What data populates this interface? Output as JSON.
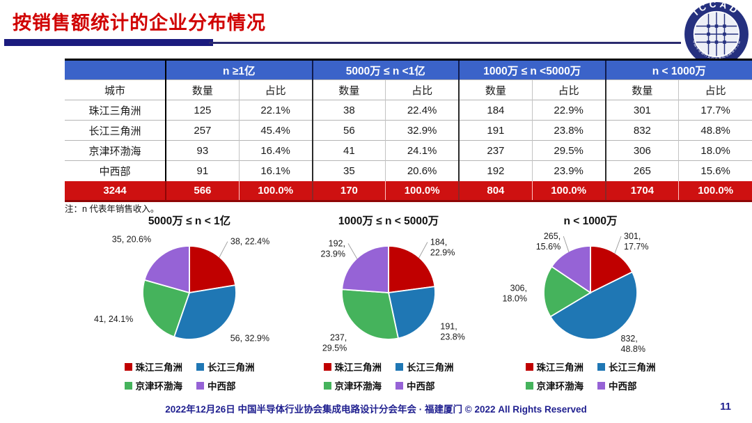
{
  "slide": {
    "title": "按销售额统计的企业分布情况",
    "note": "注：n 代表年销售收入。",
    "footer": "2022年12月26日 中国半导体行业协会集成电路设计分会年会 · 福建厦门 © 2022 All Rights Reserved",
    "page_number": "11",
    "logo_text": "ICCAD",
    "logo_ring_text": "中国半导体行业协会集成电路设计分会"
  },
  "colors": {
    "title_red": "#D00000",
    "divider_navy": "#1B1B7E",
    "header_blue": "#3B63C9",
    "total_row_red": "#CE1111",
    "footer_navy": "#1F1F8F",
    "pie_red": "#C00000",
    "pie_blue": "#1F77B4",
    "pie_green": "#45B35C",
    "pie_purple": "#9663D6"
  },
  "table": {
    "city_header": "城市",
    "group_headers": [
      "n ≥1亿",
      "5000万 ≤ n <1亿",
      "1000万 ≤ n <5000万",
      "n < 1000万"
    ],
    "sub_headers": [
      "数量",
      "占比"
    ],
    "rows": [
      {
        "city": "珠江三角洲",
        "cells": [
          "125",
          "22.1%",
          "38",
          "22.4%",
          "184",
          "22.9%",
          "301",
          "17.7%"
        ]
      },
      {
        "city": "长江三角洲",
        "cells": [
          "257",
          "45.4%",
          "56",
          "32.9%",
          "191",
          "23.8%",
          "832",
          "48.8%"
        ]
      },
      {
        "city": "京津环渤海",
        "cells": [
          "93",
          "16.4%",
          "41",
          "24.1%",
          "237",
          "29.5%",
          "306",
          "18.0%"
        ]
      },
      {
        "city": "中西部",
        "cells": [
          "91",
          "16.1%",
          "35",
          "20.6%",
          "192",
          "23.9%",
          "265",
          "15.6%"
        ]
      }
    ],
    "total_row": {
      "city": "3244",
      "cells": [
        "566",
        "100.0%",
        "170",
        "100.0%",
        "804",
        "100.0%",
        "1704",
        "100.0%"
      ]
    }
  },
  "legend": {
    "items": [
      {
        "label": "珠江三角洲",
        "color": "#C00000"
      },
      {
        "label": "长江三角洲",
        "color": "#1F77B4"
      },
      {
        "label": "京津环渤海",
        "color": "#45B35C"
      },
      {
        "label": "中西部",
        "color": "#9663D6"
      }
    ]
  },
  "chart_data": [
    {
      "type": "pie",
      "title": "5000万 ≤ n < 1亿",
      "legend_position": "bottom",
      "slices": [
        {
          "name": "珠江三角洲",
          "value": 38,
          "pct": 22.4,
          "label_lines": [
            "38, 22.4%"
          ],
          "leader": true,
          "color": "#C00000"
        },
        {
          "name": "长江三角洲",
          "value": 56,
          "pct": 32.9,
          "label_lines": [
            "56, 32.9%"
          ],
          "leader": false,
          "color": "#1F77B4"
        },
        {
          "name": "京津环渤海",
          "value": 41,
          "pct": 24.1,
          "label_lines": [
            "41, 24.1%"
          ],
          "leader": false,
          "color": "#45B35C"
        },
        {
          "name": "中西部",
          "value": 35,
          "pct": 20.6,
          "label_lines": [
            "35, 20.6%"
          ],
          "leader": false,
          "color": "#9663D6"
        }
      ]
    },
    {
      "type": "pie",
      "title": "1000万 ≤ n < 5000万",
      "legend_position": "bottom",
      "slices": [
        {
          "name": "珠江三角洲",
          "value": 184,
          "pct": 22.9,
          "label_lines": [
            "184,",
            "22.9%"
          ],
          "leader": true,
          "color": "#C00000"
        },
        {
          "name": "长江三角洲",
          "value": 191,
          "pct": 23.8,
          "label_lines": [
            "191,",
            "23.8%"
          ],
          "leader": false,
          "color": "#1F77B4"
        },
        {
          "name": "京津环渤海",
          "value": 237,
          "pct": 29.5,
          "label_lines": [
            "237,",
            "29.5%"
          ],
          "leader": false,
          "color": "#45B35C"
        },
        {
          "name": "中西部",
          "value": 192,
          "pct": 23.9,
          "label_lines": [
            "192,",
            "23.9%"
          ],
          "leader": true,
          "color": "#9663D6"
        }
      ]
    },
    {
      "type": "pie",
      "title": "n < 1000万",
      "legend_position": "bottom",
      "slices": [
        {
          "name": "珠江三角洲",
          "value": 301,
          "pct": 17.7,
          "label_lines": [
            "301,",
            "17.7%"
          ],
          "leader": true,
          "color": "#C00000"
        },
        {
          "name": "长江三角洲",
          "value": 832,
          "pct": 48.8,
          "label_lines": [
            "832,",
            "48.8%"
          ],
          "leader": false,
          "color": "#1F77B4"
        },
        {
          "name": "京津环渤海",
          "value": 306,
          "pct": 18.0,
          "label_lines": [
            "306,",
            "18.0%"
          ],
          "leader": false,
          "color": "#45B35C"
        },
        {
          "name": "中西部",
          "value": 265,
          "pct": 15.6,
          "label_lines": [
            "265,",
            "15.6%"
          ],
          "leader": true,
          "color": "#9663D6"
        }
      ]
    }
  ]
}
